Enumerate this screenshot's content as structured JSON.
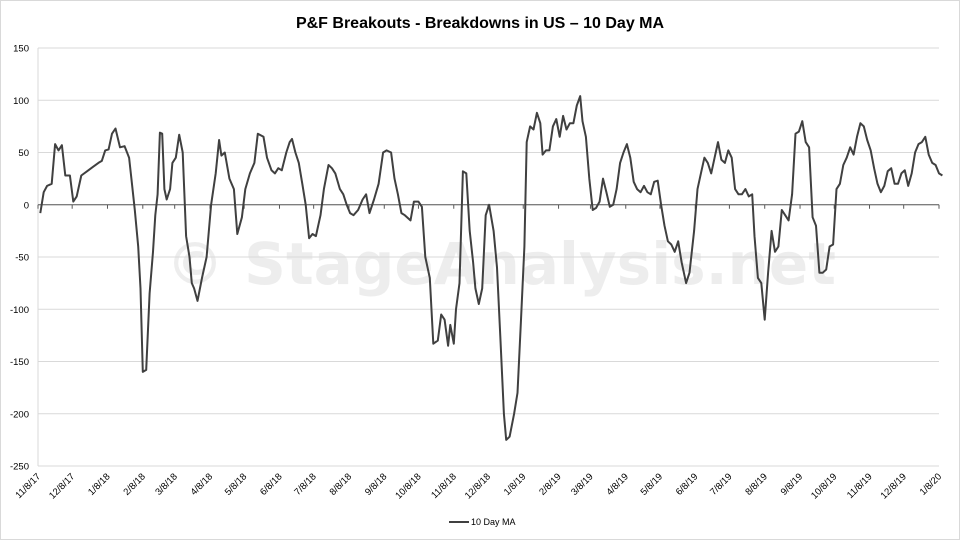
{
  "watermark": "© StageAnalysis.net",
  "chart_data": {
    "type": "line",
    "title": "P&F Breakouts - Breakdowns in US – 10 Day MA",
    "xlabel": "",
    "ylabel": "",
    "ylim": [
      -250,
      150
    ],
    "yticks": [
      150,
      100,
      50,
      0,
      -50,
      -100,
      -150,
      -200,
      -250
    ],
    "x_tick_labels": [
      "11/8/17",
      "12/8/17",
      "1/8/18",
      "2/8/18",
      "3/8/18",
      "4/8/18",
      "5/8/18",
      "6/8/18",
      "7/8/18",
      "8/8/18",
      "9/8/18",
      "10/8/18",
      "11/8/18",
      "12/8/18",
      "1/8/19",
      "2/8/19",
      "3/8/19",
      "4/8/19",
      "5/8/19",
      "6/8/19",
      "7/8/19",
      "8/8/19",
      "9/8/19",
      "10/8/19",
      "11/8/19",
      "12/8/19",
      "1/8/20"
    ],
    "grid": true,
    "legend_position": "bottom",
    "line_color": "#404040",
    "series": [
      {
        "name": "10 Day MA",
        "points": [
          [
            "11/10/17",
            -8
          ],
          [
            "11/13/17",
            12
          ],
          [
            "11/16/17",
            18
          ],
          [
            "11/20/17",
            20
          ],
          [
            "11/23/17",
            58
          ],
          [
            "11/26/17",
            52
          ],
          [
            "11/29/17",
            57
          ],
          [
            "12/2/17",
            28
          ],
          [
            "12/6/17",
            28
          ],
          [
            "12/9/17",
            3
          ],
          [
            "12/12/17",
            8
          ],
          [
            "12/16/17",
            28
          ],
          [
            "12/21/17",
            32
          ],
          [
            "12/26/17",
            36
          ],
          [
            "12/31/17",
            40
          ],
          [
            "1/3/18",
            42
          ],
          [
            "1/6/18",
            52
          ],
          [
            "1/9/18",
            53
          ],
          [
            "1/12/18",
            68
          ],
          [
            "1/15/18",
            73
          ],
          [
            "1/19/18",
            55
          ],
          [
            "1/23/18",
            56
          ],
          [
            "1/27/18",
            45
          ],
          [
            "1/29/18",
            25
          ],
          [
            "2/1/18",
            -5
          ],
          [
            "2/4/18",
            -40
          ],
          [
            "2/6/18",
            -80
          ],
          [
            "2/8/18",
            -160
          ],
          [
            "2/11/18",
            -158
          ],
          [
            "2/14/18",
            -85
          ],
          [
            "2/17/18",
            -45
          ],
          [
            "2/19/18",
            -10
          ],
          [
            "2/21/18",
            10
          ],
          [
            "2/23/18",
            69
          ],
          [
            "2/25/18",
            68
          ],
          [
            "2/27/18",
            15
          ],
          [
            "3/1/18",
            5
          ],
          [
            "3/4/18",
            15
          ],
          [
            "3/6/18",
            40
          ],
          [
            "3/9/18",
            45
          ],
          [
            "3/12/18",
            67
          ],
          [
            "3/15/18",
            50
          ],
          [
            "3/18/18",
            -30
          ],
          [
            "3/21/18",
            -50
          ],
          [
            "3/23/18",
            -75
          ],
          [
            "3/25/18",
            -80
          ],
          [
            "3/28/18",
            -92
          ],
          [
            "4/1/18",
            -70
          ],
          [
            "4/5/18",
            -50
          ],
          [
            "4/9/18",
            0
          ],
          [
            "4/13/18",
            30
          ],
          [
            "4/16/18",
            62
          ],
          [
            "4/18/18",
            47
          ],
          [
            "4/21/18",
            50
          ],
          [
            "4/25/18",
            25
          ],
          [
            "4/29/18",
            15
          ],
          [
            "5/2/18",
            -28
          ],
          [
            "5/6/18",
            -12
          ],
          [
            "5/9/18",
            15
          ],
          [
            "5/13/18",
            30
          ],
          [
            "5/17/18",
            40
          ],
          [
            "5/20/18",
            68
          ],
          [
            "5/25/18",
            65
          ],
          [
            "5/28/18",
            45
          ],
          [
            "6/1/18",
            33
          ],
          [
            "6/4/18",
            30
          ],
          [
            "6/7/18",
            35
          ],
          [
            "6/10/18",
            33
          ],
          [
            "6/14/18",
            50
          ],
          [
            "6/17/18",
            60
          ],
          [
            "6/19/18",
            63
          ],
          [
            "6/22/18",
            50
          ],
          [
            "6/25/18",
            40
          ],
          [
            "6/28/18",
            20
          ],
          [
            "7/1/18",
            0
          ],
          [
            "7/4/18",
            -32
          ],
          [
            "7/7/18",
            -28
          ],
          [
            "7/10/18",
            -30
          ],
          [
            "7/14/18",
            -10
          ],
          [
            "7/17/18",
            15
          ],
          [
            "7/21/18",
            38
          ],
          [
            "7/24/18",
            35
          ],
          [
            "7/27/18",
            30
          ],
          [
            "7/31/18",
            15
          ],
          [
            "8/3/18",
            10
          ],
          [
            "8/6/18",
            0
          ],
          [
            "8/9/18",
            -8
          ],
          [
            "8/12/18",
            -10
          ],
          [
            "8/16/18",
            -5
          ],
          [
            "8/20/18",
            5
          ],
          [
            "8/23/18",
            10
          ],
          [
            "8/26/18",
            -8
          ],
          [
            "8/30/18",
            5
          ],
          [
            "9/3/18",
            20
          ],
          [
            "9/7/18",
            50
          ],
          [
            "9/10/18",
            52
          ],
          [
            "9/14/18",
            50
          ],
          [
            "9/17/18",
            25
          ],
          [
            "9/20/18",
            10
          ],
          [
            "9/23/18",
            -8
          ],
          [
            "9/26/18",
            -10
          ],
          [
            "10/1/18",
            -15
          ],
          [
            "10/4/18",
            3
          ],
          [
            "10/8/18",
            3
          ],
          [
            "10/11/18",
            -2
          ],
          [
            "10/14/18",
            -50
          ],
          [
            "10/18/18",
            -70
          ],
          [
            "10/21/18",
            -133
          ],
          [
            "10/25/18",
            -130
          ],
          [
            "10/28/18",
            -105
          ],
          [
            "10/31/18",
            -110
          ],
          [
            "11/3/18",
            -135
          ],
          [
            "11/5/18",
            -115
          ],
          [
            "11/8/18",
            -133
          ],
          [
            "11/10/18",
            -100
          ],
          [
            "11/13/18",
            -75
          ],
          [
            "11/16/18",
            32
          ],
          [
            "11/19/18",
            30
          ],
          [
            "11/22/18",
            -25
          ],
          [
            "11/25/18",
            -55
          ],
          [
            "11/27/18",
            -80
          ],
          [
            "11/30/18",
            -95
          ],
          [
            "12/3/18",
            -80
          ],
          [
            "12/6/18",
            -10
          ],
          [
            "12/9/18",
            0
          ],
          [
            "12/13/18",
            -25
          ],
          [
            "12/16/18",
            -60
          ],
          [
            "12/19/18",
            -130
          ],
          [
            "12/22/18",
            -200
          ],
          [
            "12/24/18",
            -225
          ],
          [
            "12/27/18",
            -222
          ],
          [
            "12/31/18",
            -200
          ],
          [
            "1/3/19",
            -180
          ],
          [
            "1/6/19",
            -110
          ],
          [
            "1/9/19",
            -40
          ],
          [
            "1/11/19",
            60
          ],
          [
            "1/14/19",
            75
          ],
          [
            "1/17/19",
            72
          ],
          [
            "1/20/19",
            88
          ],
          [
            "1/23/19",
            78
          ],
          [
            "1/25/19",
            48
          ],
          [
            "1/28/19",
            52
          ],
          [
            "1/31/19",
            52
          ],
          [
            "2/3/19",
            75
          ],
          [
            "2/6/19",
            82
          ],
          [
            "2/9/19",
            65
          ],
          [
            "2/12/19",
            85
          ],
          [
            "2/15/19",
            72
          ],
          [
            "2/18/19",
            78
          ],
          [
            "2/21/19",
            78
          ],
          [
            "2/24/19",
            95
          ],
          [
            "2/27/19",
            104
          ],
          [
            "3/1/19",
            80
          ],
          [
            "3/4/19",
            65
          ],
          [
            "3/7/19",
            25
          ],
          [
            "3/10/19",
            -5
          ],
          [
            "3/13/19",
            -3
          ],
          [
            "3/16/19",
            3
          ],
          [
            "3/19/19",
            25
          ],
          [
            "3/22/19",
            12
          ],
          [
            "3/25/19",
            -2
          ],
          [
            "3/28/19",
            0
          ],
          [
            "3/31/19",
            15
          ],
          [
            "4/3/19",
            40
          ],
          [
            "4/6/19",
            50
          ],
          [
            "4/9/19",
            58
          ],
          [
            "4/12/19",
            45
          ],
          [
            "4/15/19",
            22
          ],
          [
            "4/18/19",
            15
          ],
          [
            "4/21/19",
            12
          ],
          [
            "4/24/19",
            18
          ],
          [
            "4/27/19",
            12
          ],
          [
            "4/30/19",
            10
          ],
          [
            "5/3/19",
            22
          ],
          [
            "5/6/19",
            23
          ],
          [
            "5/9/19",
            0
          ],
          [
            "5/12/19",
            -20
          ],
          [
            "5/15/19",
            -35
          ],
          [
            "5/18/19",
            -38
          ],
          [
            "5/21/19",
            -45
          ],
          [
            "5/24/19",
            -35
          ],
          [
            "5/27/19",
            -55
          ],
          [
            "5/31/19",
            -75
          ],
          [
            "6/3/19",
            -65
          ],
          [
            "6/7/19",
            -25
          ],
          [
            "6/10/19",
            15
          ],
          [
            "6/13/19",
            30
          ],
          [
            "6/16/19",
            45
          ],
          [
            "6/19/19",
            40
          ],
          [
            "6/22/19",
            30
          ],
          [
            "6/25/19",
            45
          ],
          [
            "6/28/19",
            60
          ],
          [
            "7/1/19",
            43
          ],
          [
            "7/4/19",
            40
          ],
          [
            "7/7/19",
            52
          ],
          [
            "7/10/19",
            45
          ],
          [
            "7/13/19",
            15
          ],
          [
            "7/16/19",
            10
          ],
          [
            "7/19/19",
            10
          ],
          [
            "7/22/19",
            15
          ],
          [
            "7/25/19",
            8
          ],
          [
            "7/28/19",
            10
          ],
          [
            "7/30/19",
            -30
          ],
          [
            "8/2/19",
            -70
          ],
          [
            "8/5/19",
            -75
          ],
          [
            "8/8/19",
            -110
          ],
          [
            "8/11/19",
            -65
          ],
          [
            "8/14/19",
            -25
          ],
          [
            "8/17/19",
            -45
          ],
          [
            "8/20/19",
            -40
          ],
          [
            "8/23/19",
            -5
          ],
          [
            "8/26/19",
            -10
          ],
          [
            "8/29/19",
            -15
          ],
          [
            "9/1/19",
            10
          ],
          [
            "9/4/19",
            68
          ],
          [
            "9/7/19",
            70
          ],
          [
            "9/10/19",
            80
          ],
          [
            "9/13/19",
            60
          ],
          [
            "9/16/19",
            55
          ],
          [
            "9/19/19",
            -12
          ],
          [
            "9/22/19",
            -20
          ],
          [
            "9/25/19",
            -65
          ],
          [
            "9/28/19",
            -65
          ],
          [
            "10/1/19",
            -62
          ],
          [
            "10/4/19",
            -40
          ],
          [
            "10/7/19",
            -38
          ],
          [
            "10/10/19",
            15
          ],
          [
            "10/13/19",
            20
          ],
          [
            "10/16/19",
            38
          ],
          [
            "10/19/19",
            45
          ],
          [
            "10/22/19",
            55
          ],
          [
            "10/25/19",
            48
          ],
          [
            "10/28/19",
            65
          ],
          [
            "10/31/19",
            78
          ],
          [
            "11/3/19",
            75
          ],
          [
            "11/6/19",
            62
          ],
          [
            "11/9/19",
            52
          ],
          [
            "11/12/19",
            35
          ],
          [
            "11/15/19",
            20
          ],
          [
            "11/18/19",
            12
          ],
          [
            "11/21/19",
            18
          ],
          [
            "11/24/19",
            32
          ],
          [
            "11/27/19",
            35
          ],
          [
            "11/30/19",
            20
          ],
          [
            "12/3/19",
            20
          ],
          [
            "12/6/19",
            30
          ],
          [
            "12/9/19",
            33
          ],
          [
            "12/12/19",
            18
          ],
          [
            "12/15/19",
            30
          ],
          [
            "12/18/19",
            50
          ],
          [
            "12/21/19",
            58
          ],
          [
            "12/24/19",
            60
          ],
          [
            "12/27/19",
            65
          ],
          [
            "12/30/19",
            48
          ],
          [
            "1/2/20",
            40
          ],
          [
            "1/5/20",
            38
          ],
          [
            "1/8/20",
            30
          ],
          [
            "1/11/20",
            28
          ]
        ]
      }
    ]
  }
}
